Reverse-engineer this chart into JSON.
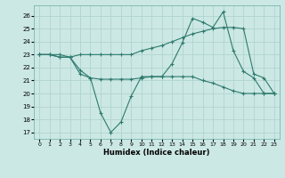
{
  "xlabel": "Humidex (Indice chaleur)",
  "bg_color": "#cce8e4",
  "line_color": "#2d7a6e",
  "grid_color": "#b0d4cf",
  "xlim": [
    -0.5,
    23.5
  ],
  "ylim": [
    16.5,
    26.8
  ],
  "yticks": [
    17,
    18,
    19,
    20,
    21,
    22,
    23,
    24,
    25,
    26
  ],
  "xticks": [
    0,
    1,
    2,
    3,
    4,
    5,
    6,
    7,
    8,
    9,
    10,
    11,
    12,
    13,
    14,
    15,
    16,
    17,
    18,
    19,
    20,
    21,
    22,
    23
  ],
  "line1_x": [
    0,
    1,
    2,
    3,
    4,
    5,
    6,
    7,
    8,
    9,
    10,
    11,
    12,
    13,
    14,
    15,
    16,
    17,
    18,
    19,
    20,
    21,
    22,
    23
  ],
  "line1_y": [
    23,
    23,
    23,
    22.8,
    21.8,
    21.2,
    18.5,
    17.0,
    17.8,
    19.8,
    21.3,
    21.3,
    21.3,
    22.3,
    23.9,
    25.8,
    25.5,
    25.1,
    26.3,
    23.3,
    21.7,
    21.2,
    20.0,
    20.0
  ],
  "line2_x": [
    0,
    1,
    2,
    3,
    4,
    5,
    6,
    7,
    8,
    9,
    10,
    11,
    12,
    13,
    14,
    15,
    16,
    17,
    18,
    19,
    20,
    21,
    22,
    23
  ],
  "line2_y": [
    23,
    23,
    22.8,
    22.8,
    23,
    23,
    23,
    23,
    23,
    23,
    23.3,
    23.5,
    23.7,
    24.0,
    24.3,
    24.6,
    24.8,
    25.0,
    25.1,
    25.1,
    25.0,
    21.5,
    21.2,
    20.0
  ],
  "line3_x": [
    0,
    1,
    2,
    3,
    4,
    5,
    6,
    7,
    8,
    9,
    10,
    11,
    12,
    13,
    14,
    15,
    16,
    17,
    18,
    19,
    20,
    21,
    22,
    23
  ],
  "line3_y": [
    23,
    23,
    22.8,
    22.8,
    21.5,
    21.2,
    21.1,
    21.1,
    21.1,
    21.1,
    21.2,
    21.3,
    21.3,
    21.3,
    21.3,
    21.3,
    21.0,
    20.8,
    20.5,
    20.2,
    20.0,
    20.0,
    20.0,
    20.0
  ]
}
